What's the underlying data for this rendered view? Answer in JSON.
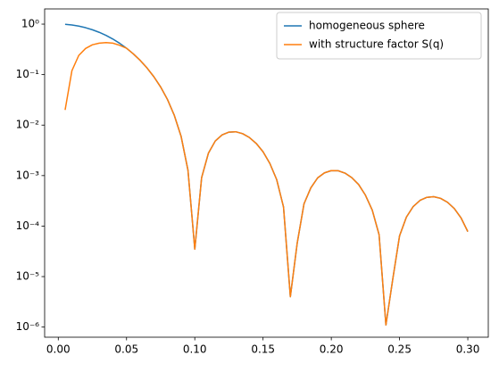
{
  "chart_data": {
    "type": "line",
    "x": [
      0.005,
      0.01,
      0.015,
      0.02,
      0.025,
      0.03,
      0.035,
      0.04,
      0.045,
      0.05,
      0.055,
      0.06,
      0.065,
      0.07,
      0.075,
      0.08,
      0.085,
      0.09,
      0.095,
      0.1,
      0.105,
      0.11,
      0.115,
      0.12,
      0.125,
      0.13,
      0.135,
      0.14,
      0.145,
      0.15,
      0.155,
      0.16,
      0.165,
      0.17,
      0.175,
      0.18,
      0.185,
      0.19,
      0.195,
      0.2,
      0.205,
      0.21,
      0.215,
      0.22,
      0.225,
      0.23,
      0.235,
      0.24,
      0.245,
      0.25,
      0.255,
      0.26,
      0.265,
      0.27,
      0.275,
      0.28,
      0.285,
      0.29,
      0.295,
      0.3
    ],
    "series": [
      {
        "name": "homogeneous sphere",
        "color": "#1f77b4",
        "values": [
          0.99,
          0.96,
          0.913,
          0.85,
          0.7727,
          0.6877,
          0.5974,
          0.506,
          0.4167,
          0.3332,
          0.2573,
          0.1912,
          0.1355,
          0.0909,
          0.0568,
          0.0321,
          0.01558,
          0.00594,
          0.001278,
          3.5e-05,
          0.000908,
          0.002794,
          0.004843,
          0.006404,
          0.007268,
          0.007382,
          0.006773,
          0.005682,
          0.004338,
          0.002961,
          0.001739,
          0.000831,
          0.000238,
          4e-06,
          4.55e-05,
          0.000276,
          0.000572,
          0.000902,
          0.001134,
          0.001256,
          0.001248,
          0.00112,
          0.000911,
          0.000666,
          0.00041,
          0.000207,
          6.76e-05,
          1.1e-06,
          8.8e-06,
          6.4e-05,
          0.0001506,
          0.000244,
          0.000323,
          0.000371,
          0.000382,
          0.000355,
          0.000298,
          0.000224,
          0.000146,
          7.77e-05
        ]
      },
      {
        "name": "with structure factor S(q)",
        "color": "#ff7f0e",
        "values": [
          0.02,
          0.12,
          0.24,
          0.33,
          0.39,
          0.42,
          0.43,
          0.42,
          0.38,
          0.3332,
          0.2573,
          0.1912,
          0.1355,
          0.0909,
          0.0568,
          0.0321,
          0.01558,
          0.00594,
          0.001278,
          3.5e-05,
          0.000908,
          0.002794,
          0.004843,
          0.006404,
          0.007268,
          0.007382,
          0.006773,
          0.005682,
          0.004338,
          0.002961,
          0.001739,
          0.000831,
          0.000238,
          4e-06,
          4.55e-05,
          0.000276,
          0.000572,
          0.000902,
          0.001134,
          0.001256,
          0.001248,
          0.00112,
          0.000911,
          0.000666,
          0.00041,
          0.000207,
          6.76e-05,
          1.1e-06,
          8.8e-06,
          6.4e-05,
          0.0001506,
          0.000244,
          0.000323,
          0.000371,
          0.000382,
          0.000355,
          0.000298,
          0.000224,
          0.000146,
          7.77e-05
        ]
      }
    ],
    "xlim": [
      -0.01,
      0.315
    ],
    "xticks": [
      {
        "value": 0,
        "label": "0.00"
      },
      0.05,
      {
        "value": 0.1,
        "label": "0.10"
      },
      0.15,
      {
        "value": 0.2,
        "label": "0.20"
      },
      0.25,
      {
        "value": 0.3,
        "label": "0.30"
      }
    ],
    "ylim": [
      6.3e-07,
      2.0
    ],
    "yticks": [
      {
        "value": 1e-06,
        "label": "10⁻⁶"
      },
      {
        "value": 1e-05,
        "label": "10⁻⁵"
      },
      {
        "value": 0.0001,
        "label": "10⁻⁴"
      },
      {
        "value": 0.001,
        "label": "10⁻³"
      },
      {
        "value": 0.01,
        "label": "10⁻²"
      },
      {
        "value": 0.1,
        "label": "10⁻¹"
      },
      {
        "value": 1,
        "label": "10⁰"
      }
    ],
    "yscale": "log",
    "legend": "upper right"
  }
}
